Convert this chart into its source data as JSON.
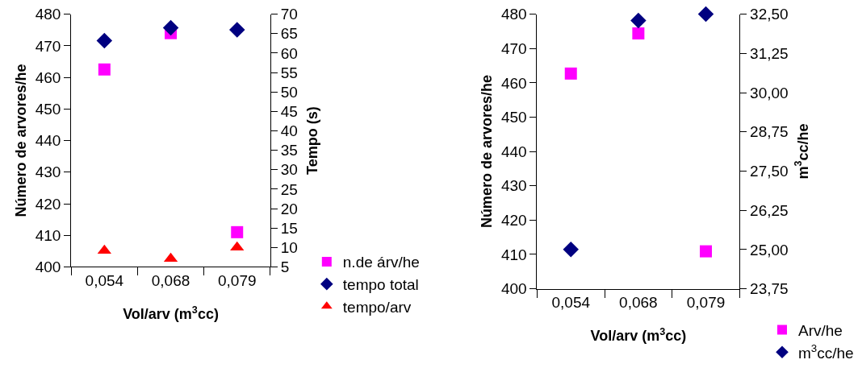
{
  "chart_data": [
    {
      "type": "scatter",
      "xlabel": "Vol/arv (m$^{3}$cc)",
      "ylabel": "Número de arvores/he",
      "y2label": "Tempo (s)",
      "categories": [
        "0,054",
        "0,068",
        "0,079"
      ],
      "ylim": [
        400,
        480
      ],
      "yticks": [
        400,
        410,
        420,
        430,
        440,
        450,
        460,
        470,
        480
      ],
      "y2lim": [
        5,
        70
      ],
      "y2ticks": [
        5,
        10,
        15,
        20,
        25,
        30,
        35,
        40,
        45,
        50,
        55,
        60,
        65,
        70
      ],
      "legend": "bottom right",
      "series": [
        {
          "name": "n.de árv/he",
          "color": "#ff00ff",
          "marker": "square",
          "values": [
            462.5,
            474,
            411
          ]
        },
        {
          "name": "tempo total",
          "color": "#000080",
          "marker": "diamond",
          "axis": "y2",
          "values": [
            63.2,
            66.5,
            66
          ]
        },
        {
          "name": "tempo/arv",
          "color": "#ff0000",
          "marker": "triangle",
          "axis": "y2",
          "values": [
            9.2,
            7.1,
            10
          ]
        }
      ]
    },
    {
      "type": "scatter",
      "xlabel": "Vol/arv (m$^{3}$cc)",
      "ylabel": "Número de arvores/he",
      "y2label": "m$^{3}$cc/he",
      "categories": [
        "0,054",
        "0,068",
        "0,079"
      ],
      "ylim": [
        400,
        480
      ],
      "yticks": [
        400,
        410,
        420,
        430,
        440,
        450,
        460,
        470,
        480
      ],
      "y2lim": [
        23.75,
        32.5
      ],
      "y2ticks": [
        {
          "value": 23.75,
          "label": "23,75"
        },
        {
          "value": 25,
          "label": "25,00"
        },
        {
          "value": 26.25,
          "label": "26,25"
        },
        {
          "value": 27.5,
          "label": "27,50"
        },
        {
          "value": 28.75,
          "label": "28,75"
        },
        {
          "value": 30,
          "label": "30,00"
        },
        {
          "value": 31.25,
          "label": "31,25"
        },
        {
          "value": 32.5,
          "label": "32,50"
        }
      ],
      "legend": "bottom right",
      "series": [
        {
          "name": "Arv/he",
          "color": "#ff00ff",
          "marker": "square",
          "values": [
            462.7,
            474.4,
            410.9
          ]
        },
        {
          "name": "m$^{3}$cc/he",
          "color": "#000080",
          "marker": "diamond",
          "axis": "y2",
          "values": [
            25.0,
            32.3,
            32.5
          ]
        }
      ]
    }
  ]
}
